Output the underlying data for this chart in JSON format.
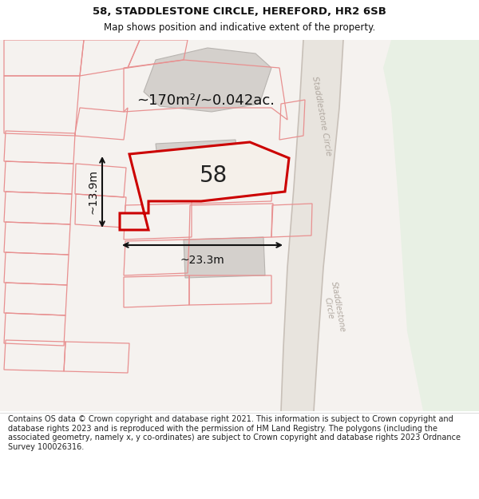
{
  "title": "58, STADDLESTONE CIRCLE, HEREFORD, HR2 6SB",
  "subtitle": "Map shows position and indicative extent of the property.",
  "area_label": "~170m²/~0.042ac.",
  "width_label": "~23.3m",
  "height_label": "~13.9m",
  "property_number": "58",
  "footer": "Contains OS data © Crown copyright and database right 2021. This information is subject to Crown copyright and database rights 2023 and is reproduced with the permission of HM Land Registry. The polygons (including the associated geometry, namely x, y co-ordinates) are subject to Crown copyright and database rights 2023 Ordnance Survey 100026316.",
  "bg_color": "#f5f2ef",
  "green_bg": "#e8f0e4",
  "road_bg": "#e8e4de",
  "building_fill": "#d4d0cc",
  "property_fill": "#f0ece6",
  "property_stroke": "#cc1111",
  "boundary_color": "#e89090",
  "title_color": "#111111",
  "footer_color": "#222222",
  "road_label_color": "#aaaaaa",
  "dim_line_color": "#111111"
}
